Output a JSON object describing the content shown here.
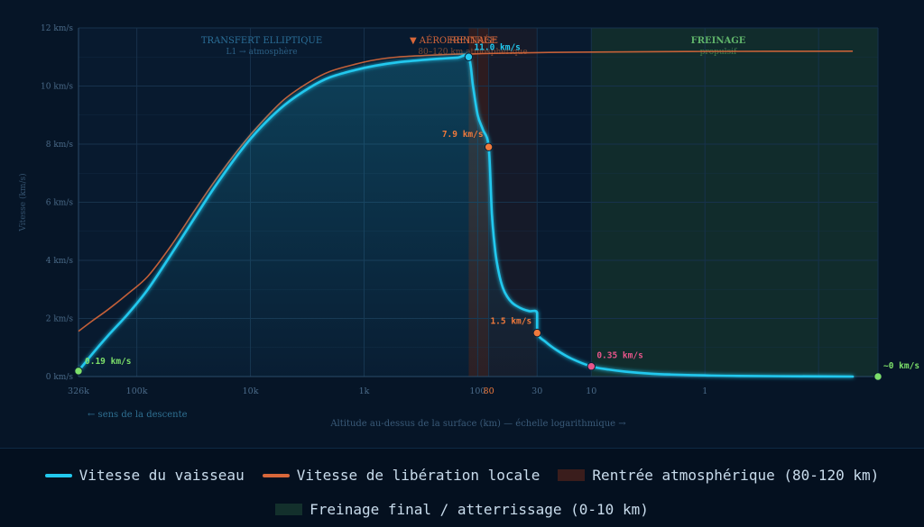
{
  "colors": {
    "background": "#061527",
    "plot_bg": "#081a2f",
    "grid": "#17324c",
    "axis_text": "#4a6a88",
    "vessel": "#22c8ee",
    "escape": "#d8673a",
    "reentry_band": "#3a1d1c",
    "braking_band": "#13302c",
    "point_orange": "#f07a3c",
    "point_pink": "#e8558a",
    "point_green": "#7de06a"
  },
  "chart_data": {
    "type": "line",
    "xlabel": "Altitude au-dessus de la surface (km) — échelle logarithmique →",
    "ylabel": "Vitesse (km/s)",
    "x_scale": "log-reversed",
    "xlim_km": [
      326000,
      0.03
    ],
    "ylim": [
      0,
      12
    ],
    "y_ticks": [
      0,
      2,
      4,
      6,
      8,
      10,
      12
    ],
    "y_tick_unit": " km/s",
    "x_ticks": [
      {
        "value": 326000,
        "label": "326k"
      },
      {
        "value": 100000,
        "label": "100k"
      },
      {
        "value": 10000,
        "label": "10k"
      },
      {
        "value": 1000,
        "label": "1k"
      },
      {
        "value": 100,
        "label": "100"
      },
      {
        "value": 80,
        "label": "80"
      },
      {
        "value": 30,
        "label": "30"
      },
      {
        "value": 10,
        "label": "10"
      },
      {
        "value": 1,
        "label": "1"
      }
    ],
    "direction_note": "← sens de la descente",
    "regions": [
      {
        "key": "transfer",
        "title": "TRANSFERT ELLIPTIQUE",
        "subtitle": "L1 → atmosphère",
        "from_km": 326000,
        "to_km": 120
      },
      {
        "key": "reentry",
        "title": "RENTRÉE",
        "subtitle": "80–120 km atmosphérique",
        "from_km": 120,
        "to_km": 80
      },
      {
        "key": "aero",
        "title": "▼ AÉROFREINAGE",
        "subtitle": "",
        "from_km": 80,
        "to_km": 30
      },
      {
        "key": "braking",
        "title": "FREINAGE",
        "subtitle": "propulsif",
        "from_km": 10,
        "to_km": 0.03
      }
    ],
    "series": [
      {
        "name": "Vitesse du vaisseau",
        "x_km": [
          326000,
          250000,
          180000,
          120000,
          80000,
          50000,
          30000,
          20000,
          12000,
          8000,
          5000,
          3000,
          2000,
          1200,
          800,
          500,
          300,
          200,
          150,
          120,
          110,
          100,
          90,
          80,
          75,
          70,
          65,
          60,
          55,
          50,
          45,
          40,
          35,
          30,
          30,
          25,
          20,
          15,
          10,
          7,
          5,
          3,
          2,
          1,
          0.5,
          0.1,
          0.05
        ],
        "values": [
          0.19,
          0.75,
          1.4,
          2.15,
          3.0,
          4.2,
          5.55,
          6.6,
          7.8,
          8.6,
          9.35,
          9.95,
          10.3,
          10.55,
          10.7,
          10.82,
          10.9,
          10.95,
          10.98,
          11.0,
          10.0,
          9.0,
          8.5,
          7.9,
          5.6,
          4.3,
          3.55,
          3.05,
          2.75,
          2.55,
          2.42,
          2.32,
          2.25,
          2.2,
          1.5,
          1.18,
          0.9,
          0.62,
          0.35,
          0.24,
          0.17,
          0.1,
          0.07,
          0.04,
          0.02,
          0.005,
          0.0
        ]
      },
      {
        "name": "Vitesse de libération locale",
        "x_km": [
          326000,
          250000,
          180000,
          120000,
          80000,
          50000,
          30000,
          20000,
          12000,
          8000,
          5000,
          3000,
          2000,
          1200,
          800,
          500,
          300,
          200,
          150,
          120,
          80,
          30,
          10,
          1,
          0.05
        ],
        "values": [
          1.56,
          1.9,
          2.3,
          2.85,
          3.45,
          4.5,
          5.8,
          6.8,
          7.95,
          8.75,
          9.55,
          10.15,
          10.5,
          10.75,
          10.9,
          11.0,
          11.05,
          11.08,
          11.1,
          11.1,
          11.12,
          11.15,
          11.17,
          11.19,
          11.2
        ]
      }
    ],
    "points": [
      {
        "x_km": 326000,
        "value": 0.19,
        "label": "0.19 km/s",
        "color_key": "point_green"
      },
      {
        "x_km": 120,
        "value": 11.0,
        "label": "11.0 km/s",
        "color_key": "vessel"
      },
      {
        "x_km": 80,
        "value": 7.9,
        "label": "7.9 km/s",
        "color_key": "point_orange"
      },
      {
        "x_km": 30,
        "value": 1.5,
        "label": "1.5 km/s",
        "color_key": "point_orange"
      },
      {
        "x_km": 10,
        "value": 0.35,
        "label": "0.35 km/s",
        "color_key": "point_pink"
      },
      {
        "x_km": 0.03,
        "value": 0.0,
        "label": "~0 km/s",
        "color_key": "point_green"
      }
    ]
  },
  "legend": {
    "items": [
      {
        "label": "Vitesse du vaisseau",
        "kind": "line",
        "color_key": "vessel"
      },
      {
        "label": "Vitesse de libération locale",
        "kind": "line",
        "color_key": "escape"
      },
      {
        "label": "Rentrée atmosphérique (80-120 km)",
        "kind": "box",
        "color_key": "reentry_band"
      },
      {
        "label": "Freinage final / atterrissage (0-10 km)",
        "kind": "box",
        "color_key": "braking_band"
      }
    ]
  }
}
